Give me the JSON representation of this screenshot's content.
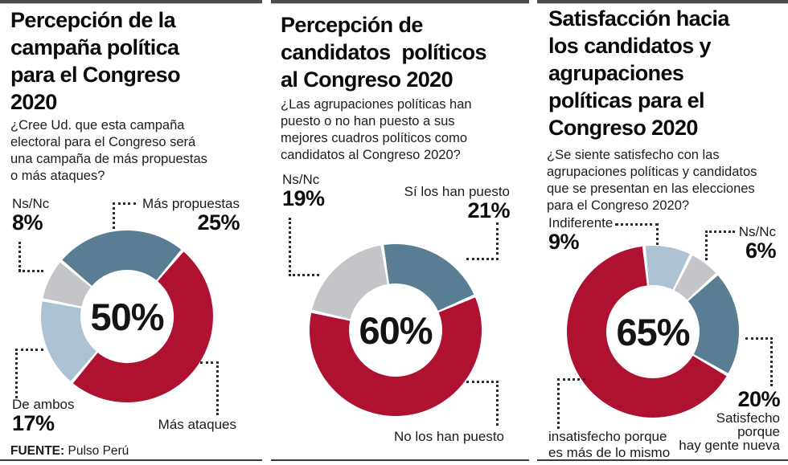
{
  "source": {
    "label": "FUENTE:",
    "name": "Pulso Perú"
  },
  "colors": {
    "red": "#ae1230",
    "steelblue": "#597d93",
    "lightblue": "#adc2d3",
    "gray": "#c3c5c8",
    "ink": "#111111"
  },
  "chart_data": [
    {
      "type": "donut",
      "title": "Percepción de la\ncampaña política\npara el Congreso\n2020",
      "question": "¿Cree Ud. que esta campaña\nelectoral para el Congreso será\nuna campaña de más propuestas\no más ataques?",
      "center_label": "50%",
      "start_angle": -50,
      "legend_position": "around",
      "segments": [
        {
          "label": "Más propuestas",
          "value": 25,
          "pct_label": "25%",
          "color": "steelblue"
        },
        {
          "label": "Más ataques",
          "value": 50,
          "pct_label": "",
          "color": "red"
        },
        {
          "label": "De ambos",
          "value": 17,
          "pct_label": "17%",
          "color": "lightblue"
        },
        {
          "label": "Ns/Nc",
          "value": 8,
          "pct_label": "8%",
          "color": "gray"
        }
      ]
    },
    {
      "type": "donut",
      "title": "Percepción de\ncandidatos  políticos\nal Congreso 2020",
      "question": "¿Las agrupaciones políticas han\npuesto o no han puesto a sus\nmejores cuadros políticos como\ncandidatos al Congreso 2020?",
      "center_label": "60%",
      "start_angle": -9,
      "legend_position": "around",
      "segments": [
        {
          "label": "Sí los han puesto",
          "value": 21,
          "pct_label": "21%",
          "color": "steelblue"
        },
        {
          "label": "No los han puesto",
          "value": 60,
          "pct_label": "",
          "color": "red"
        },
        {
          "label": "Ns/Nc",
          "value": 19,
          "pct_label": "19%",
          "color": "gray"
        }
      ]
    },
    {
      "type": "donut",
      "title": "Satisfacción hacia\nlos candidatos y\nagrupaciones\npolíticas para el\nCongreso 2020",
      "question": "¿Se siente satisfecho con las\nagrupaciones políticas y candidatos\nque se presentan en las elecciones\npara el Congreso 2020?",
      "center_label": "65%",
      "start_angle": -6,
      "legend_position": "around",
      "segments": [
        {
          "label": "Indiferente",
          "value": 9,
          "pct_label": "9%",
          "color": "lightblue"
        },
        {
          "label": "Ns/Nc",
          "value": 6,
          "pct_label": "6%",
          "color": "gray"
        },
        {
          "label": "Satisfecho\nporque\nhay gente nueva",
          "value": 20,
          "pct_label": "20%",
          "color": "steelblue"
        },
        {
          "label": "insatisfecho porque\nes más de lo mismo",
          "value": 65,
          "pct_label": "",
          "color": "red"
        }
      ]
    }
  ]
}
